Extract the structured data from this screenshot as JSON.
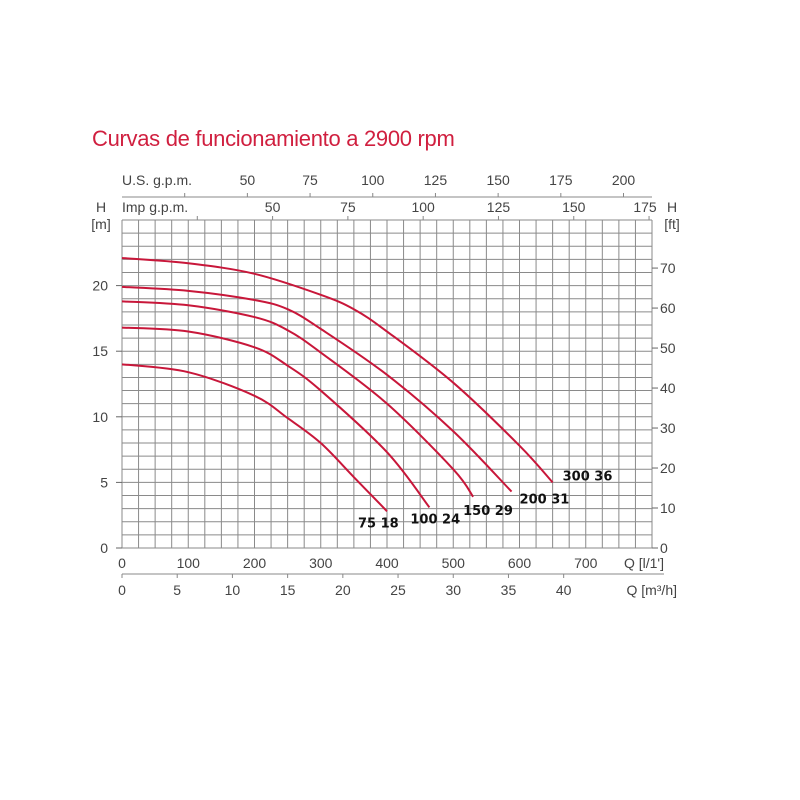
{
  "chart_data": {
    "type": "line",
    "title": "Curvas de funcionamiento a 2900 rpm",
    "x_axis_bottom_primary": {
      "label": "Q [l/1']",
      "range": [
        0,
        800
      ],
      "ticks": [
        0,
        100,
        200,
        300,
        400,
        500,
        600,
        700
      ]
    },
    "x_axis_bottom_secondary": {
      "label": "Q [m³/h]",
      "ticks": [
        0,
        5,
        10,
        15,
        20,
        25,
        30,
        35,
        40
      ]
    },
    "x_axis_top_us": {
      "label": "U.S. g.p.m.",
      "ticks": [
        50,
        75,
        100,
        125,
        150,
        175,
        200
      ]
    },
    "x_axis_top_imp": {
      "label": "Imp g.p.m.",
      "ticks": [
        50,
        75,
        100,
        125,
        150,
        175
      ]
    },
    "y_axis_left": {
      "label_line1": "H",
      "label_line2": "[m]",
      "range": [
        0,
        25
      ],
      "ticks": [
        0,
        5,
        10,
        15,
        20
      ]
    },
    "y_axis_right": {
      "label_line1": "H",
      "label_line2": "[ft]",
      "ticks": [
        0,
        10,
        20,
        30,
        40,
        50,
        60,
        70
      ]
    },
    "grid": true,
    "colors": {
      "curve": "#c8173a",
      "title": "#d01f3f",
      "grid": "#8a8a8a"
    },
    "series": [
      {
        "name": "75 18",
        "points": [
          [
            0,
            14.0
          ],
          [
            100,
            13.4
          ],
          [
            200,
            11.6
          ],
          [
            250,
            9.9
          ],
          [
            300,
            8.0
          ],
          [
            350,
            5.4
          ],
          [
            400,
            2.8
          ]
        ]
      },
      {
        "name": "100 24",
        "points": [
          [
            0,
            16.8
          ],
          [
            100,
            16.5
          ],
          [
            200,
            15.3
          ],
          [
            250,
            13.9
          ],
          [
            300,
            12.0
          ],
          [
            400,
            7.3
          ],
          [
            464,
            3.1
          ]
        ]
      },
      {
        "name": "150 29",
        "points": [
          [
            0,
            18.8
          ],
          [
            100,
            18.5
          ],
          [
            200,
            17.6
          ],
          [
            250,
            16.6
          ],
          [
            300,
            14.9
          ],
          [
            400,
            11.0
          ],
          [
            500,
            6.0
          ],
          [
            530,
            3.9
          ]
        ]
      },
      {
        "name": "200 31",
        "points": [
          [
            0,
            19.9
          ],
          [
            100,
            19.6
          ],
          [
            200,
            18.9
          ],
          [
            250,
            18.2
          ],
          [
            300,
            16.7
          ],
          [
            400,
            13.2
          ],
          [
            500,
            8.9
          ],
          [
            588,
            4.3
          ]
        ]
      },
      {
        "name": "300 36",
        "points": [
          [
            0,
            22.1
          ],
          [
            100,
            21.7
          ],
          [
            200,
            20.9
          ],
          [
            300,
            19.3
          ],
          [
            350,
            18.2
          ],
          [
            400,
            16.5
          ],
          [
            500,
            12.6
          ],
          [
            600,
            7.8
          ],
          [
            650,
            5.0
          ]
        ]
      }
    ]
  }
}
